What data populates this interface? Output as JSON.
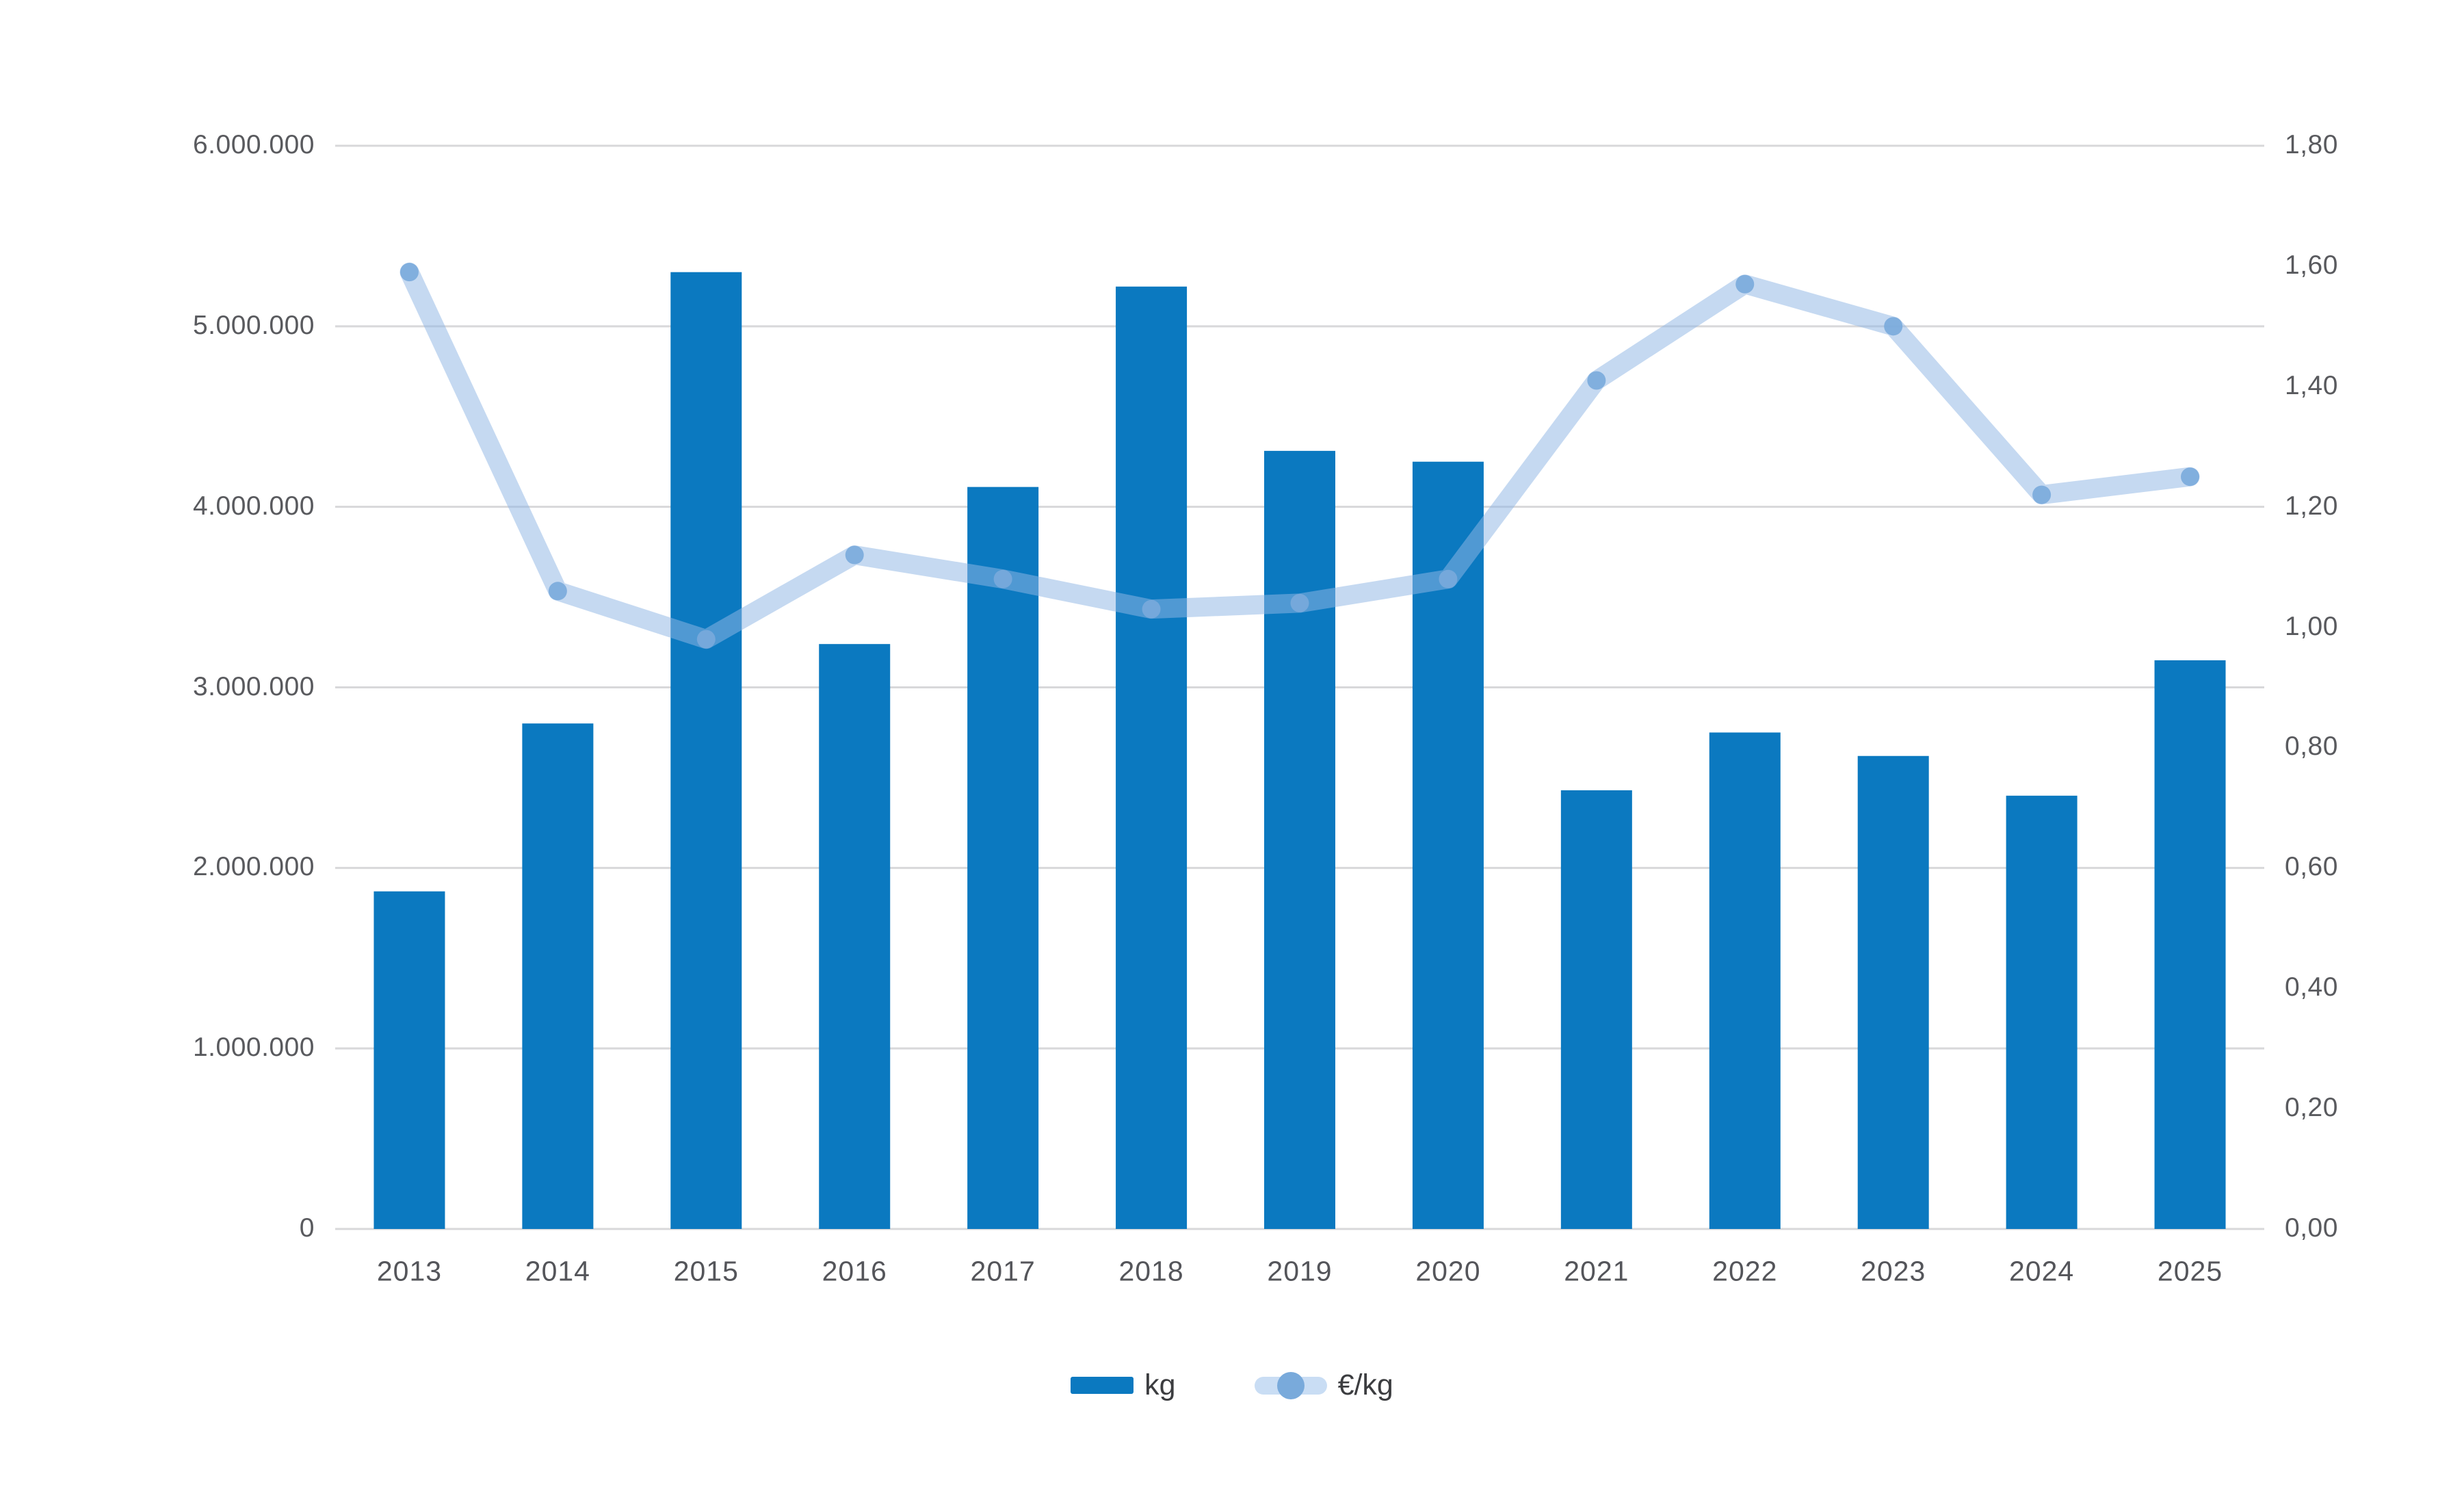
{
  "chart_data": {
    "type": "combo-bar-line",
    "title": "",
    "categories": [
      "2013",
      "2014",
      "2015",
      "2016",
      "2017",
      "2018",
      "2019",
      "2020",
      "2021",
      "2022",
      "2023",
      "2024",
      "2025"
    ],
    "series": [
      {
        "name": "kg",
        "type": "bar",
        "axis": "left",
        "values": [
          1870000,
          2800000,
          5300000,
          3240000,
          4110000,
          5220000,
          4310000,
          4250000,
          2430000,
          2750000,
          2620000,
          2400000,
          3150000
        ]
      },
      {
        "name": "€/kg",
        "type": "line",
        "axis": "right",
        "values": [
          1.59,
          1.06,
          0.98,
          1.12,
          1.08,
          1.03,
          1.04,
          1.08,
          1.41,
          1.57,
          1.5,
          1.22,
          1.25
        ]
      }
    ],
    "left_axis": {
      "min": 0,
      "max": 6000000,
      "tick_step": 1000000,
      "tick_labels": [
        "6.000.000",
        "5.000.000",
        "4.000.000",
        "3.000.000",
        "2.000.000",
        "1.000.000",
        "0"
      ]
    },
    "right_axis": {
      "min": 0,
      "max": 1.8,
      "tick_step": 0.2,
      "tick_labels": [
        "1,80",
        "1,60",
        "1,40",
        "1,20",
        "1,00",
        "0,80",
        "0,60",
        "0,40",
        "0,20",
        "0,00"
      ]
    },
    "gridlines": "horizontal at left-axis ticks only",
    "legend_position": "bottom-center",
    "colors": {
      "bar": "#0b79c0",
      "line": "#c9ddf4",
      "line_stroke_base": "#8fb6e4",
      "marker": "#79aadb",
      "grid": "#d8d8da",
      "axis_text": "#595a5e",
      "x_text": "#54555a",
      "legend_text": "#3c3d40",
      "background": "#ffffff"
    }
  },
  "legend": {
    "kg_label": "kg",
    "eur_per_kg_label": "€/kg"
  }
}
